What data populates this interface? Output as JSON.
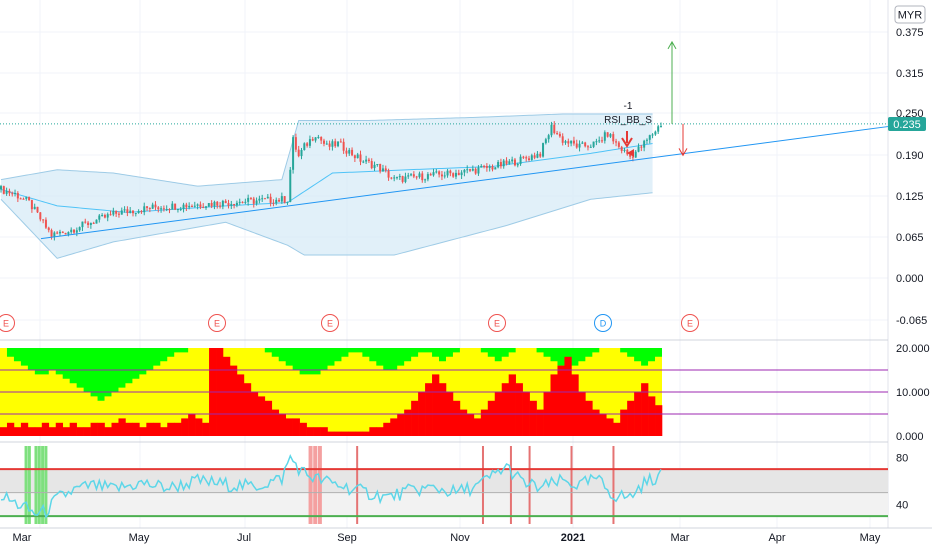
{
  "currency_label": "MYR",
  "price_badge": "0.235",
  "strategy_label": "RSI_BB_S",
  "strategy_value": "-1",
  "colors": {
    "up": "#26a69a",
    "down": "#ef5350",
    "bb_fill": "#d4eaf7",
    "bb_line": "#9ecbe6",
    "ma_line": "#4fc3f7",
    "trend_line": "#2196f3",
    "price_line": "#26a69a",
    "green_zone": "#00ff00",
    "yellow_zone": "#ffff00",
    "red_zone": "#ff0000",
    "rsi_line": "#5dd6e8",
    "rsi_band": "#d9d9d9",
    "purple": "#9c27b0",
    "earnings": "#ef5350",
    "dividend": "#2196f3"
  },
  "x_axis": {
    "labels": [
      "Mar",
      "May",
      "Jul",
      "Sep",
      "Nov",
      "2021",
      "Mar",
      "Apr",
      "May"
    ]
  },
  "events": [
    {
      "letter": "E",
      "kind": "earnings"
    },
    {
      "letter": "E",
      "kind": "earnings"
    },
    {
      "letter": "E",
      "kind": "earnings"
    },
    {
      "letter": "E",
      "kind": "earnings"
    },
    {
      "letter": "D",
      "kind": "dividend"
    },
    {
      "letter": "E",
      "kind": "earnings"
    }
  ],
  "chart_data": [
    {
      "type": "candlestick",
      "title": "",
      "y_ticks": [
        "0.375",
        "0.315",
        "0.250",
        "0.190",
        "0.125",
        "0.065",
        "0.000",
        "-0.065"
      ],
      "ylim": [
        -0.065,
        0.375
      ],
      "last_price": 0.235,
      "price_path_keypoints": [
        [
          0,
          0.135
        ],
        [
          5,
          0.128
        ],
        [
          10,
          0.115
        ],
        [
          14,
          0.09
        ],
        [
          18,
          0.065
        ],
        [
          24,
          0.072
        ],
        [
          32,
          0.085
        ],
        [
          42,
          0.1
        ],
        [
          55,
          0.108
        ],
        [
          70,
          0.112
        ],
        [
          80,
          0.115
        ],
        [
          92,
          0.118
        ],
        [
          102,
          0.12
        ],
        [
          104,
          0.21
        ],
        [
          106,
          0.185
        ],
        [
          108,
          0.2
        ],
        [
          112,
          0.22
        ],
        [
          116,
          0.2
        ],
        [
          120,
          0.205
        ],
        [
          128,
          0.18
        ],
        [
          134,
          0.17
        ],
        [
          140,
          0.15
        ],
        [
          150,
          0.155
        ],
        [
          162,
          0.16
        ],
        [
          176,
          0.17
        ],
        [
          185,
          0.18
        ],
        [
          192,
          0.19
        ],
        [
          196,
          0.23
        ],
        [
          200,
          0.21
        ],
        [
          206,
          0.2
        ],
        [
          212,
          0.205
        ],
        [
          216,
          0.22
        ],
        [
          220,
          0.2
        ],
        [
          224,
          0.185
        ],
        [
          228,
          0.2
        ],
        [
          232,
          0.22
        ],
        [
          235,
          0.235
        ]
      ],
      "bollinger_upper": [
        [
          0,
          0.15
        ],
        [
          20,
          0.165
        ],
        [
          40,
          0.16
        ],
        [
          70,
          0.14
        ],
        [
          100,
          0.15
        ],
        [
          106,
          0.24
        ],
        [
          130,
          0.24
        ],
        [
          170,
          0.245
        ],
        [
          200,
          0.25
        ],
        [
          232,
          0.25
        ]
      ],
      "bollinger_lower": [
        [
          0,
          0.12
        ],
        [
          20,
          0.03
        ],
        [
          40,
          0.055
        ],
        [
          80,
          0.085
        ],
        [
          102,
          0.05
        ],
        [
          108,
          0.035
        ],
        [
          140,
          0.035
        ],
        [
          180,
          0.08
        ],
        [
          210,
          0.12
        ],
        [
          232,
          0.13
        ]
      ],
      "moving_average": [
        [
          0,
          0.135
        ],
        [
          20,
          0.11
        ],
        [
          45,
          0.1
        ],
        [
          80,
          0.11
        ],
        [
          102,
          0.115
        ],
        [
          118,
          0.16
        ],
        [
          145,
          0.165
        ],
        [
          175,
          0.17
        ],
        [
          210,
          0.19
        ],
        [
          232,
          0.205
        ]
      ],
      "trend_line": [
        [
          0,
          0.06
        ],
        [
          310,
          0.24
        ]
      ],
      "target_up": [
        0.235,
        0.36
      ],
      "target_down": [
        0.235,
        0.19
      ]
    },
    {
      "type": "area",
      "title": "",
      "y_ticks": [
        "20.000",
        "10.000",
        "0.000"
      ],
      "ylim": [
        0,
        20
      ],
      "h_lines": [
        15,
        10,
        5
      ],
      "red_values": [
        2,
        3,
        2,
        3,
        2,
        2,
        3,
        2,
        3,
        2,
        3,
        2,
        2,
        3,
        3,
        2,
        3,
        4,
        3,
        3,
        2,
        3,
        3,
        2,
        3,
        3,
        4,
        5,
        4,
        3,
        20,
        20,
        18,
        16,
        14,
        12,
        10,
        9,
        8,
        6,
        5,
        4,
        4,
        3,
        2,
        2,
        2,
        1,
        1,
        1,
        1,
        1,
        1,
        2,
        2,
        3,
        4,
        5,
        6,
        8,
        10,
        12,
        14,
        12,
        10,
        8,
        6,
        5,
        4,
        6,
        8,
        10,
        12,
        14,
        12,
        10,
        8,
        6,
        10,
        14,
        16,
        18,
        14,
        10,
        8,
        6,
        5,
        4,
        3,
        6,
        8,
        10,
        12,
        9,
        7
      ],
      "yellow_top": [
        20,
        18,
        17,
        16,
        15,
        14,
        14,
        15,
        14,
        13,
        12,
        11,
        10,
        9,
        8,
        9,
        10,
        11,
        12,
        13,
        14,
        15,
        16,
        17,
        18,
        19,
        19,
        20,
        20,
        20,
        20,
        20,
        20,
        20,
        20,
        20,
        20,
        20,
        19,
        18,
        17,
        16,
        15,
        14,
        14,
        14,
        15,
        16,
        17,
        18,
        19,
        19,
        18,
        17,
        16,
        15,
        15,
        16,
        17,
        18,
        19,
        19,
        18,
        17,
        18,
        19,
        20,
        20,
        20,
        19,
        18,
        17,
        18,
        19,
        20,
        20,
        20,
        19,
        18,
        17,
        16,
        15,
        16,
        17,
        18,
        19,
        20,
        20,
        20,
        19,
        18,
        17,
        16,
        17,
        18
      ]
    },
    {
      "type": "line",
      "title": "",
      "y_ticks": [
        "80",
        "40"
      ],
      "ylim": [
        25,
        88
      ],
      "upper_band": 70,
      "mid_band": 50,
      "lower_band": 30,
      "rsi_path_keypoints": [
        [
          0,
          48
        ],
        [
          4,
          42
        ],
        [
          8,
          38
        ],
        [
          12,
          32
        ],
        [
          16,
          34
        ],
        [
          20,
          45
        ],
        [
          26,
          52
        ],
        [
          32,
          56
        ],
        [
          40,
          53
        ],
        [
          50,
          58
        ],
        [
          60,
          54
        ],
        [
          70,
          60
        ],
        [
          80,
          57
        ],
        [
          90,
          55
        ],
        [
          100,
          62
        ],
        [
          103,
          80
        ],
        [
          107,
          68
        ],
        [
          112,
          62
        ],
        [
          118,
          58
        ],
        [
          124,
          54
        ],
        [
          130,
          50
        ],
        [
          138,
          46
        ],
        [
          146,
          52
        ],
        [
          154,
          54
        ],
        [
          162,
          50
        ],
        [
          170,
          56
        ],
        [
          176,
          66
        ],
        [
          180,
          72
        ],
        [
          186,
          58
        ],
        [
          192,
          54
        ],
        [
          200,
          60
        ],
        [
          206,
          56
        ],
        [
          212,
          62
        ],
        [
          218,
          48
        ],
        [
          224,
          46
        ],
        [
          228,
          56
        ],
        [
          232,
          62
        ],
        [
          235,
          64
        ]
      ],
      "green_marker_ratios": [
        0.025,
        0.03,
        0.04,
        0.045,
        0.05,
        0.055
      ],
      "red_marker_ratios": [
        0.33,
        0.335,
        0.34,
        0.38,
        0.515,
        0.545,
        0.565,
        0.61,
        0.655
      ]
    }
  ]
}
